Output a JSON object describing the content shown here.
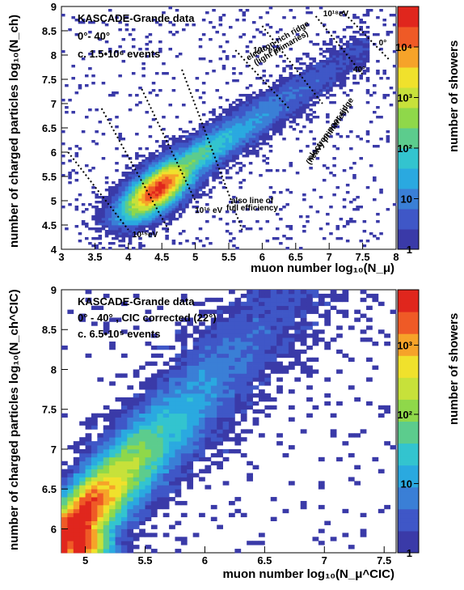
{
  "colors": {
    "palette": [
      "#3a3aa8",
      "#3f57c7",
      "#3a7fd6",
      "#2aa9e0",
      "#33c4cf",
      "#5ccc8d",
      "#8fd84a",
      "#c7e13a",
      "#f0e12c",
      "#f6a329",
      "#ef5a26",
      "#e0261d"
    ]
  },
  "chart_data": [
    {
      "type": "heatmap",
      "info": [
        "KASCADE-Grande data",
        "0°- 40°",
        "c. 1.5•10⁶ events"
      ],
      "xlabel": "muon number log₁₀(N_μ)",
      "ylabel": "number of charged particles log₁₀(N_ch)",
      "zlabel": "number of showers",
      "xlim": [
        3,
        8
      ],
      "ylim": [
        4,
        9
      ],
      "xticks": [
        "3",
        "3.5",
        "4",
        "4.5",
        "5",
        "5.5",
        "6",
        "6.5",
        "7",
        "7.5",
        "8"
      ],
      "yticks": [
        "4",
        "4.5",
        "5",
        "5.5",
        "6",
        "6.5",
        "7",
        "7.5",
        "8",
        "8.5",
        "9"
      ],
      "zscale": "log",
      "zticks": [
        "1",
        "10",
        "10²",
        "10³",
        "10⁴"
      ],
      "zmax_log": 4.8,
      "ridges": [
        {
          "x": [
            3.75,
            4.85
          ],
          "y": [
            6.9,
            4.6
          ],
          "label": "",
          "labels": []
        },
        {
          "x": [
            4.7,
            5.9
          ],
          "y": [
            7.1,
            4.8
          ],
          "label": "",
          "labels": []
        }
      ],
      "energy_lines": [
        {
          "x": [
            3.1,
            4.0
          ],
          "y": [
            6.0,
            4.4
          ],
          "label": "10¹⁵eV"
        },
        {
          "x": [
            3.6,
            4.6
          ],
          "y": [
            6.9,
            4.4
          ],
          "label": ""
        },
        {
          "x": [
            4.2,
            5.0
          ],
          "y": [
            7.3,
            5.0
          ],
          "label": ""
        },
        {
          "x": [
            4.8,
            5.7
          ],
          "y": [
            7.7,
            4.4
          ],
          "label": "10¹⁶ eV"
        },
        {
          "x": [
            5.6,
            6.4
          ],
          "y": [
            8.1,
            6.9
          ],
          "label": "10¹⁷eV"
        },
        {
          "x": [
            6.0,
            6.9
          ],
          "y": [
            8.6,
            7.0
          ],
          "label": ""
        },
        {
          "x": [
            6.8,
            7.5
          ],
          "y": [
            8.8,
            7.6
          ],
          "label": "10¹⁸eV"
        },
        {
          "x": [
            7.2,
            7.9
          ],
          "y": [
            8.9,
            7.9
          ],
          "label": ""
        }
      ],
      "annotations": [
        {
          "text": "electron-rich ridge",
          "x": 6.25,
          "y": 8.25
        },
        {
          "text": "(light primaries)",
          "x": 6.3,
          "y": 8.1
        },
        {
          "text": "10¹⁷eV",
          "x": 6.05,
          "y": 8.05
        },
        {
          "text": "10¹⁸eV",
          "x": 7.1,
          "y": 8.8
        },
        {
          "text": "40°",
          "x": 7.45,
          "y": 7.65
        },
        {
          "text": "0°",
          "x": 7.8,
          "y": 8.2
        },
        {
          "text": "electron-poor ridge",
          "x": 7.05,
          "y": 6.45
        },
        {
          "text": "(heavy primaries)",
          "x": 7.0,
          "y": 6.3
        },
        {
          "text": "also line of",
          "x": 5.85,
          "y": 4.95
        },
        {
          "text": "full efficiency",
          "x": 5.85,
          "y": 4.8
        },
        {
          "text": "10¹⁶ eV",
          "x": 5.2,
          "y": 4.75
        },
        {
          "text": "10¹⁵eV",
          "x": 4.25,
          "y": 4.25
        }
      ]
    },
    {
      "type": "heatmap",
      "info": [
        "KASCADE-Grande data",
        "0° - 40° , CIC corrected (22°)",
        "c. 6.5•10⁵ events"
      ],
      "xlabel": "muon number log₁₀(N_μ^CIC)",
      "ylabel": "number of charged particles log₁₀(N_ch^CIC)",
      "zlabel": "number of showers",
      "xlim": [
        4.8,
        7.6
      ],
      "ylim": [
        5.7,
        9.0
      ],
      "xticks": [
        "5",
        "5.5",
        "6",
        "6.5",
        "7",
        "7.5"
      ],
      "yticks": [
        "6",
        "6.5",
        "7",
        "7.5",
        "8",
        "8.5",
        "9"
      ],
      "zscale": "log",
      "zticks": [
        "1",
        "10",
        "10²",
        "10³"
      ],
      "zmax_log": 3.8
    }
  ]
}
